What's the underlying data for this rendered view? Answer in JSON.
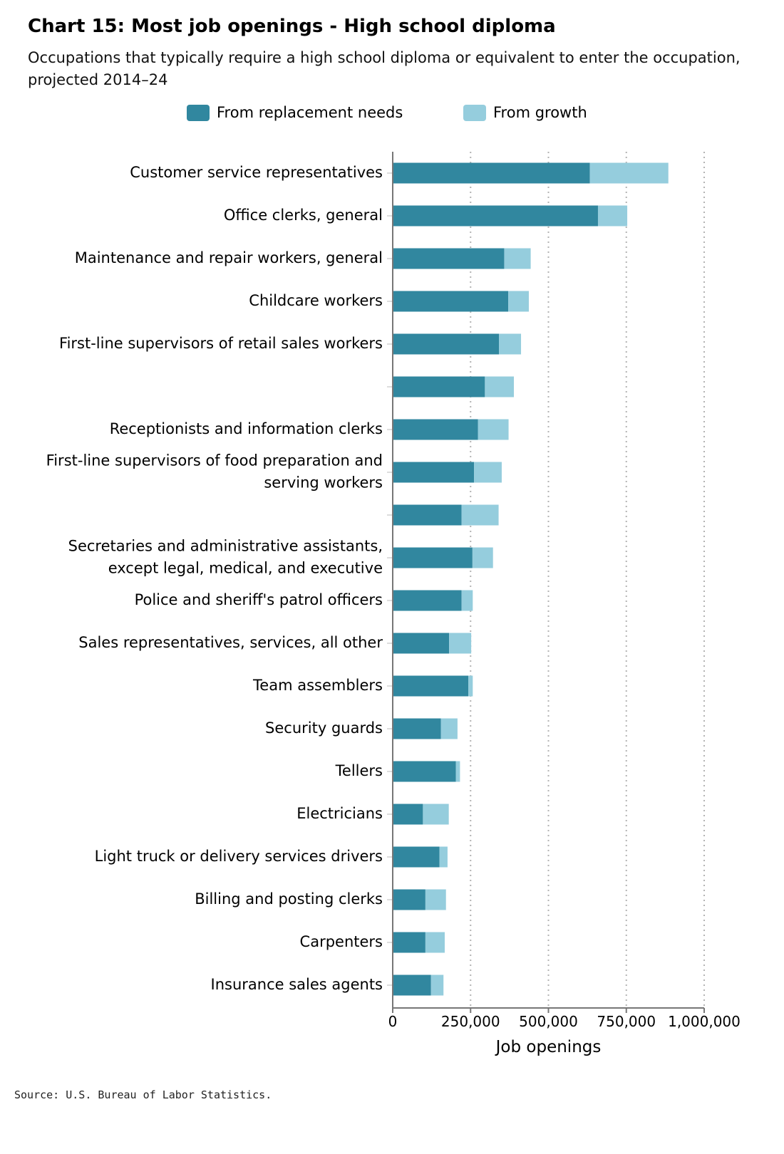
{
  "chart_data": {
    "type": "bar",
    "orientation": "horizontal",
    "stacked": true,
    "title": "Chart 15: Most job openings - High school diploma",
    "subtitle": "Occupations that typically require a high school diploma or equivalent to enter the occupation, projected 2014–24",
    "xlabel": "Job openings",
    "ylabel": "",
    "xlim": [
      0,
      1000000
    ],
    "x_ticks": [
      0,
      250000,
      500000,
      750000,
      1000000
    ],
    "x_tick_labels": [
      "0",
      "250,000",
      "500,000",
      "750,000",
      "1,000,000"
    ],
    "grid": "vertical dotted",
    "legend_position": "top",
    "categories": [
      "Customer service representatives",
      "Office clerks, general",
      "Maintenance and repair workers, general",
      "Childcare workers",
      "First-line supervisors of retail sales workers",
      "",
      "Receptionists and information clerks",
      "First-line supervisors of food preparation and serving workers",
      "",
      "Secretaries and administrative assistants, except legal, medical, and executive",
      "Police and sheriff's patrol officers",
      "Sales representatives, services, all other",
      "Team assemblers",
      "Security guards",
      "Tellers",
      "Electricians",
      "Light truck or delivery services drivers",
      "Billing and posting clerks",
      "Carpenters",
      "Insurance sales agents"
    ],
    "series": [
      {
        "name": "From replacement needs",
        "color": "#31879f",
        "values": [
          633000,
          659000,
          358000,
          371000,
          341000,
          296000,
          274000,
          261000,
          221000,
          256000,
          221000,
          181000,
          243000,
          155000,
          203000,
          97000,
          150000,
          105000,
          105000,
          123000
        ]
      },
      {
        "name": "From growth",
        "color": "#95cddd",
        "values": [
          252000,
          94000,
          85000,
          66000,
          71000,
          93000,
          98000,
          89000,
          119000,
          66000,
          36000,
          71000,
          14000,
          53000,
          13000,
          83000,
          26000,
          66000,
          62000,
          40000
        ]
      }
    ]
  },
  "source": "Source: U.S. Bureau of Labor Statistics."
}
